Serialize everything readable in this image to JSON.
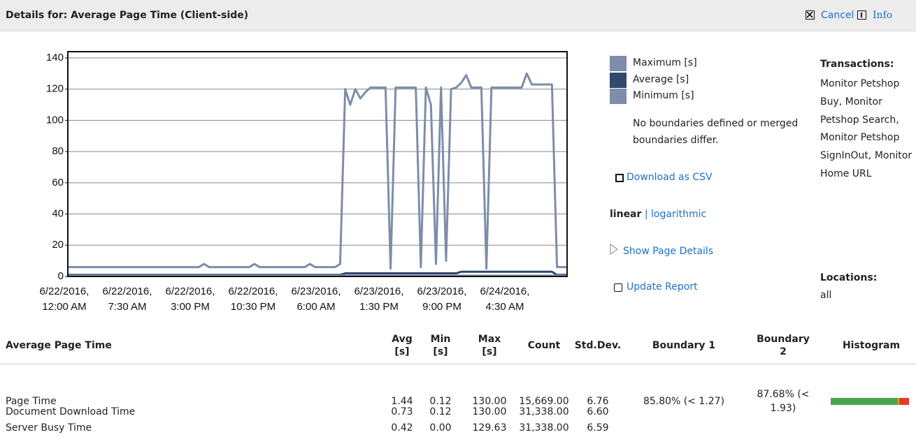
{
  "header": {
    "title": "Details for: Average Page Time (Client-side)",
    "cancel": "Cancel",
    "info": "Info"
  },
  "chart": {
    "type": "line",
    "ylim": [
      0,
      144
    ],
    "yticks": [
      0,
      20,
      40,
      60,
      80,
      100,
      120,
      140
    ],
    "grid": true,
    "x_labels": [
      {
        "date": "6/22/2016,",
        "time": "12:00 AM"
      },
      {
        "date": "6/22/2016,",
        "time": "7:30 AM"
      },
      {
        "date": "6/22/2016,",
        "time": "3:00 PM"
      },
      {
        "date": "6/22/2016,",
        "time": "10:30 PM"
      },
      {
        "date": "6/23/2016,",
        "time": "6:00 AM"
      },
      {
        "date": "6/23/2016,",
        "time": "1:30 PM"
      },
      {
        "date": "6/23/2016,",
        "time": "9:00 PM"
      },
      {
        "date": "6/24/2016,",
        "time": "4:30 AM"
      }
    ],
    "series": [
      {
        "name": "Maximum [s]",
        "color": "#7d8daa",
        "values": [
          6,
          6,
          6,
          6,
          6,
          6,
          6,
          6,
          6,
          6,
          6,
          6,
          6,
          6,
          6,
          6,
          6,
          6,
          6,
          6,
          6,
          6,
          6,
          6,
          6,
          6,
          6,
          8,
          6,
          6,
          6,
          6,
          6,
          6,
          6,
          6,
          6,
          8,
          6,
          6,
          6,
          6,
          6,
          6,
          6,
          6,
          6,
          6,
          8,
          6,
          6,
          6,
          6,
          6,
          8,
          120,
          110,
          120,
          114,
          118,
          121,
          121,
          121,
          121,
          5,
          121,
          121,
          121,
          121,
          121,
          6,
          121,
          110,
          8,
          121,
          10,
          120,
          121,
          124,
          129,
          121,
          121,
          121,
          5,
          121,
          121,
          121,
          121,
          121,
          121,
          121,
          130,
          123,
          123,
          123,
          123,
          123,
          6,
          6,
          6
        ]
      },
      {
        "name": "Average [s]",
        "color": "#33476f",
        "values": [
          1,
          1,
          1,
          1,
          1,
          1,
          1,
          1,
          1,
          1,
          1,
          1,
          1,
          1,
          1,
          1,
          1,
          1,
          1,
          1,
          1,
          1,
          1,
          1,
          1,
          1,
          1,
          1,
          1,
          1,
          1,
          1,
          1,
          1,
          1,
          1,
          1,
          1,
          1,
          1,
          1,
          1,
          1,
          1,
          1,
          1,
          1,
          1,
          1,
          1,
          1,
          1,
          1,
          1,
          1,
          2,
          2,
          2,
          2,
          2,
          2,
          2,
          2,
          2,
          2,
          2,
          2,
          2,
          2,
          2,
          2,
          2,
          2,
          2,
          2,
          2,
          2,
          2,
          3,
          3,
          3,
          3,
          3,
          3,
          3,
          3,
          3,
          3,
          3,
          3,
          3,
          3,
          3,
          3,
          3,
          3,
          3,
          1,
          1,
          1
        ]
      },
      {
        "name": "Minimum [s]",
        "color": "#7d8daa",
        "values": [
          0.5,
          0.5,
          0.5,
          0.5,
          0.5,
          0.5,
          0.5,
          0.5,
          0.5,
          0.5,
          0.5,
          0.5,
          0.5,
          0.5,
          0.5,
          0.5,
          0.5,
          0.5,
          0.5,
          0.5,
          0.5,
          0.5,
          0.5,
          0.5,
          0.5,
          0.5,
          0.5,
          0.5,
          0.5,
          0.5,
          0.5,
          0.5,
          0.5,
          0.5,
          0.5,
          0.5,
          0.5,
          0.5,
          0.5,
          0.5,
          0.5,
          0.5,
          0.5,
          0.5,
          0.5,
          0.5,
          0.5,
          0.5,
          0.5,
          0.5,
          0.5,
          0.5,
          0.5,
          0.5,
          0.5,
          0.5,
          0.5,
          0.5,
          0.5,
          0.5,
          0.5,
          0.5,
          0.5,
          0.5,
          0.5,
          0.5,
          0.5,
          0.5,
          0.5,
          0.5,
          0.5,
          0.5,
          0.5,
          0.5,
          0.5,
          0.5,
          0.5,
          0.5,
          0.5,
          0.5,
          0.5,
          0.5,
          0.5,
          0.5,
          0.5,
          0.5,
          0.5,
          0.5,
          0.5,
          0.5,
          0.5,
          0.5,
          0.5,
          0.5,
          0.5,
          0.5,
          0.5,
          0.5,
          0.5,
          0.5
        ]
      }
    ]
  },
  "legend_note": "No boundaries defined or merged boundaries differ.",
  "links": {
    "download": "Download as CSV",
    "linear": "linear",
    "separator": "|",
    "logarithmic": "logarithmic",
    "show_details": "Show Page Details",
    "update": "Update Report"
  },
  "transactions": {
    "label": "Transactions:",
    "value": "Monitor Petshop Buy, Monitor Petshop Search, Monitor Petshop SignInOut, Monitor Home URL"
  },
  "locations": {
    "label": "Locations:",
    "value": "all"
  },
  "table": {
    "headers": [
      "Average Page Time",
      "Avg [s]",
      "Min [s]",
      "Max [s]",
      "Count",
      "Std.Dev.",
      "Boundary 1",
      "Boundary 2",
      "Histogram"
    ],
    "rows": [
      [
        "Page Time",
        "1.44",
        "0.12",
        "130.00",
        "15,669.00",
        "6.76",
        "85.80% (< 1.27)",
        "87.68% (< 1.93)"
      ],
      [
        "Document Download Time",
        "0.73",
        "0.12",
        "130.00",
        "31,338.00",
        "6.60"
      ],
      [
        "Server Busy Time",
        "0.42",
        "0.00",
        "129.63",
        "31,338.00",
        "6.59"
      ]
    ]
  }
}
